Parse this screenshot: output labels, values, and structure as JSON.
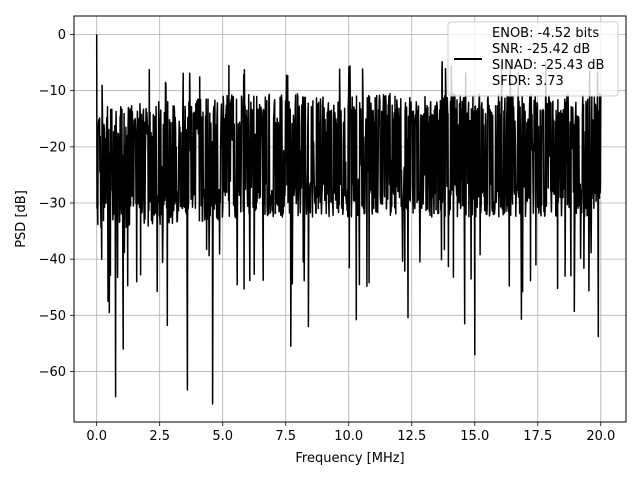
{
  "chart_data": {
    "type": "line",
    "title": "",
    "xlabel": "Frequency [MHz]",
    "ylabel": "PSD [dB]",
    "xlim": [
      -0.9,
      21.0
    ],
    "ylim": [
      -69.0,
      3.3
    ],
    "xticks": [
      0.0,
      2.5,
      5.0,
      7.5,
      10.0,
      12.5,
      15.0,
      17.5,
      20.0
    ],
    "xtick_labels": [
      "0.0",
      "2.5",
      "5.0",
      "7.5",
      "10.0",
      "12.5",
      "15.0",
      "17.5",
      "20.0"
    ],
    "yticks": [
      0,
      -10,
      -20,
      -30,
      -40,
      -50,
      -60
    ],
    "ytick_labels": [
      "0",
      "−10",
      "−20",
      "−30",
      "−40",
      "−50",
      "−60"
    ],
    "grid": true,
    "legend_position": "top-right",
    "legend": [
      "ENOB: -4.52 bits",
      "SNR: -25.42 dB",
      "SINAD: -25.43 dB",
      "SFDR: 3.73"
    ],
    "series": [
      {
        "color": "#000000",
        "x_range": [
          0.0,
          20.0
        ],
        "peak": {
          "x": 0.0,
          "y": 0.0
        },
        "approx_band": {
          "typical_max": -13,
          "typical_min": -35
        },
        "notable_dips": [
          {
            "x": 0.45,
            "y": -47.5
          },
          {
            "x": 0.5,
            "y": -49.5
          },
          {
            "x": 0.75,
            "y": -64.5
          },
          {
            "x": 1.05,
            "y": -56.0
          },
          {
            "x": 2.8,
            "y": -51.8
          },
          {
            "x": 3.6,
            "y": -63.3
          },
          {
            "x": 4.6,
            "y": -65.8
          },
          {
            "x": 7.7,
            "y": -55.5
          },
          {
            "x": 8.4,
            "y": -52.0
          },
          {
            "x": 10.3,
            "y": -50.8
          },
          {
            "x": 12.35,
            "y": -50.4
          },
          {
            "x": 14.6,
            "y": -51.5
          },
          {
            "x": 15.0,
            "y": -57.0
          },
          {
            "x": 16.85,
            "y": -50.7
          },
          {
            "x": 18.95,
            "y": -49.3
          },
          {
            "x": 19.9,
            "y": -53.8
          }
        ]
      }
    ]
  }
}
